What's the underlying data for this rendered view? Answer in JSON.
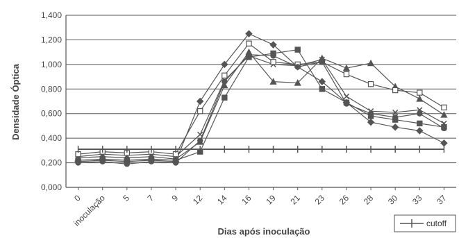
{
  "chart_data": {
    "type": "line",
    "title": "",
    "xlabel": "Dias após inoculação",
    "ylabel": "Densidade Óptica",
    "ylim": [
      0,
      1.4
    ],
    "yticks": [
      "0,000",
      "0,200",
      "0,400",
      "0,600",
      "0,800",
      "1,000",
      "1,200",
      "1,400"
    ],
    "categories": [
      "0",
      "inoculação",
      "5",
      "7",
      "9",
      "12",
      "14",
      "16",
      "19",
      "21",
      "23",
      "26",
      "28",
      "30",
      "33",
      "37"
    ],
    "grid": "horizontal",
    "legend_position": "bottom-right",
    "colors": {
      "lines": "#555555",
      "grid": "#555555",
      "text": "#444444"
    },
    "cutoff": {
      "name": "cutoff",
      "value": 0.31
    },
    "series": [
      {
        "marker": "diamond-filled",
        "values": [
          0.21,
          0.22,
          0.21,
          0.22,
          0.21,
          0.7,
          1.0,
          1.25,
          1.16,
          0.98,
          0.86,
          0.69,
          0.53,
          0.49,
          0.46,
          0.36
        ]
      },
      {
        "marker": "square-filled",
        "values": [
          0.22,
          0.23,
          0.22,
          0.23,
          0.22,
          0.29,
          0.73,
          1.06,
          1.09,
          1.12,
          0.8,
          0.69,
          0.58,
          0.55,
          0.52,
          0.49
        ]
      },
      {
        "marker": "triangle-filled",
        "values": [
          0.24,
          0.25,
          0.24,
          0.25,
          0.23,
          0.37,
          0.83,
          1.1,
          0.86,
          0.85,
          1.05,
          0.97,
          1.01,
          0.82,
          0.72,
          0.59
        ]
      },
      {
        "marker": "x",
        "values": [
          0.25,
          0.27,
          0.26,
          0.27,
          0.25,
          0.43,
          0.87,
          1.07,
          1.0,
          0.99,
          1.04,
          0.74,
          0.62,
          0.61,
          0.63,
          0.52
        ]
      },
      {
        "marker": "square-open",
        "values": [
          0.27,
          0.29,
          0.28,
          0.29,
          0.27,
          0.62,
          0.91,
          1.17,
          1.02,
          1.0,
          1.02,
          0.92,
          0.84,
          0.79,
          0.77,
          0.65
        ]
      },
      {
        "marker": "circle-filled",
        "values": [
          0.2,
          0.21,
          0.19,
          0.21,
          0.2,
          0.38,
          0.86,
          1.08,
          1.07,
          0.98,
          1.02,
          0.68,
          0.6,
          0.57,
          0.6,
          0.48
        ]
      }
    ]
  }
}
